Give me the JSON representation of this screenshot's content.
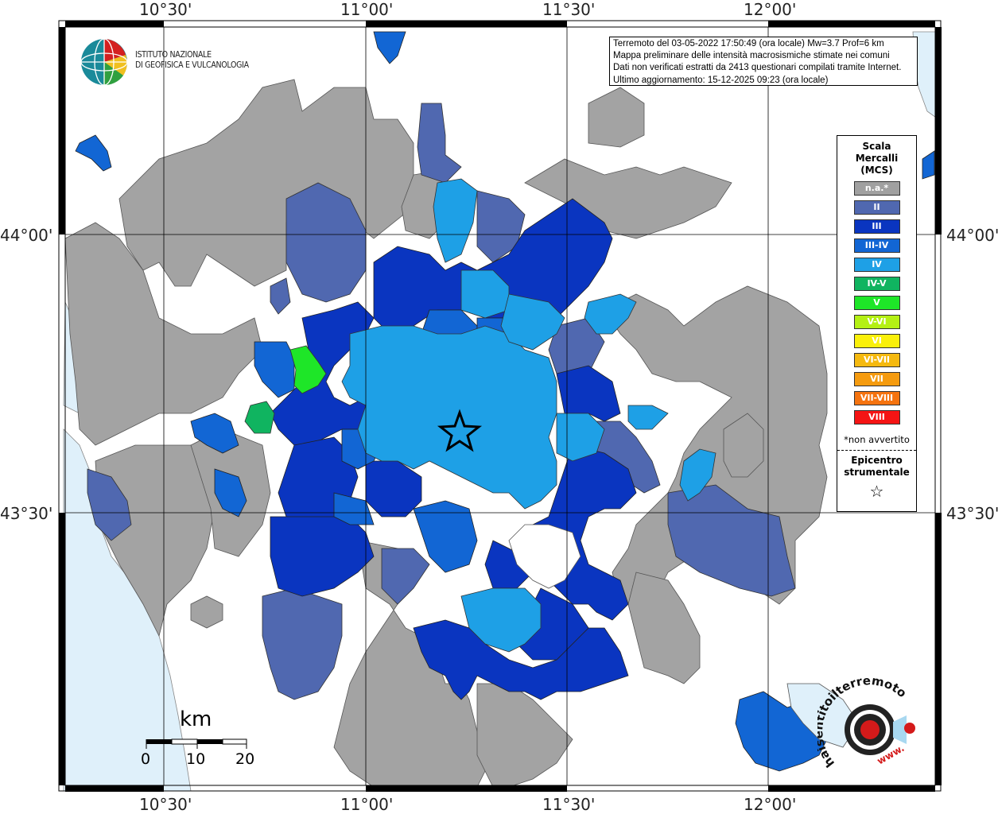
{
  "info_box": {
    "line1": "Terremoto del 03-05-2022 17:50:49 (ora locale) Mw=3.7 Prof=6 km",
    "line2": "Mappa preliminare delle intensità macrosismiche stimate nei comuni",
    "line3": "Dati non verificati estratti da 2413 questionari compilati tramite Internet.",
    "line4": "Ultimo aggiornamento: 15-12-2025 09:23 (ora locale)"
  },
  "logo": {
    "line1": "ISTITUTO NAZIONALE",
    "line2": "DI GEOFISICA E VULCANOLOGIA"
  },
  "axes": {
    "top": [
      "10°30'",
      "11°00'",
      "11°30'",
      "12°00'"
    ],
    "bottom": [
      "10°30'",
      "11°00'",
      "11°30'",
      "12°00'"
    ],
    "left": [
      "44°00'",
      "43°30'"
    ],
    "right": [
      "44°00'",
      "43°30'"
    ]
  },
  "legend": {
    "title": "Scala\nMercalli\n(MCS)",
    "items": [
      {
        "label": "n.a.*",
        "color": "#a0a0a0"
      },
      {
        "label": "II",
        "color": "#5068b0"
      },
      {
        "label": "III",
        "color": "#0a35c0"
      },
      {
        "label": "III-IV",
        "color": "#1266d4"
      },
      {
        "label": "IV",
        "color": "#1ea0e6"
      },
      {
        "label": "IV-V",
        "color": "#10b460"
      },
      {
        "label": "V",
        "color": "#1ee628"
      },
      {
        "label": "V-VI",
        "color": "#b4f014"
      },
      {
        "label": "VI",
        "color": "#faf00a"
      },
      {
        "label": "VI-VII",
        "color": "#f5b90f"
      },
      {
        "label": "VII",
        "color": "#f59b0f"
      },
      {
        "label": "VII-VIII",
        "color": "#f5730f"
      },
      {
        "label": "VIII",
        "color": "#f51414"
      }
    ],
    "note": "*non avvertito",
    "epicenter_label": "Epicentro\nstrumentale",
    "epicenter_symbol": "☆"
  },
  "scale_bar": {
    "unit": "km",
    "ticks": [
      "0",
      "10",
      "20"
    ]
  },
  "badge": {
    "text": "haisentitoilterremoto.it",
    "url_text": "www."
  },
  "colors": {
    "sea": "#dff0fa",
    "na": "#a0a0a0",
    "grid": "#000000"
  }
}
